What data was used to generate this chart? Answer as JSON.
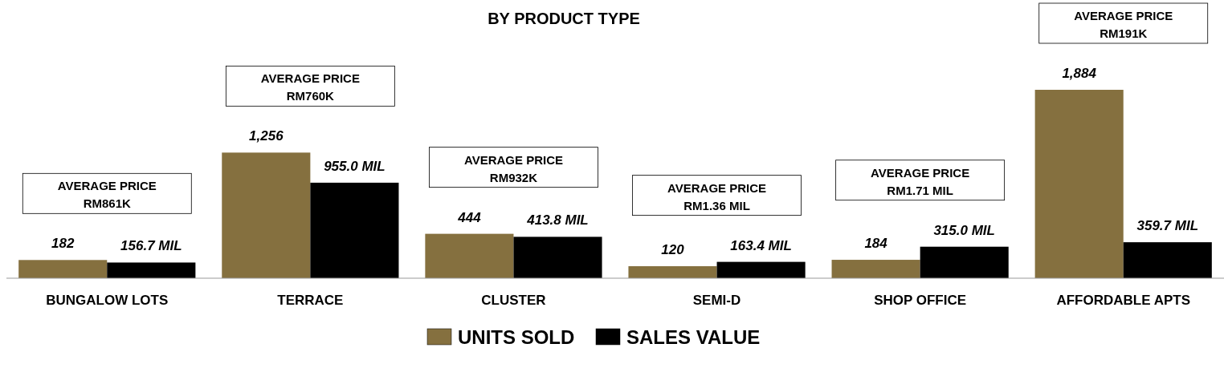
{
  "chart_data": {
    "type": "bar",
    "title": "BY PRODUCT TYPE",
    "categories": [
      "BUNGALOW LOTS",
      "TERRACE",
      "CLUSTER",
      "SEMI-D",
      "SHOP OFFICE",
      "AFFORDABLE APTS"
    ],
    "series": [
      {
        "name": "UNITS SOLD",
        "color": "#85703f",
        "values": [
          182,
          1256,
          444,
          120,
          184,
          1884
        ],
        "value_labels": [
          "182",
          "1,256",
          "444",
          "120",
          "184",
          "1,884"
        ]
      },
      {
        "name": "SALES VALUE",
        "color": "#000000",
        "values": [
          156.7,
          955.0,
          413.8,
          163.4,
          315.0,
          359.7
        ],
        "value_labels": [
          "156.7 MIL",
          "955.0 MIL",
          "413.8 MIL",
          "163.4 MIL",
          "315.0 MIL",
          "359.7 MIL"
        ]
      }
    ],
    "annotations": [
      "AVERAGE PRICE\nRM861K",
      "AVERAGE PRICE\nRM760K",
      "AVERAGE PRICE\nRM932K",
      "AVERAGE PRICE\nRM1.36 MIL",
      "AVERAGE PRICE\nRM1.71 MIL",
      "AVERAGE PRICE\nRM191K"
    ],
    "legend": "bottom"
  }
}
